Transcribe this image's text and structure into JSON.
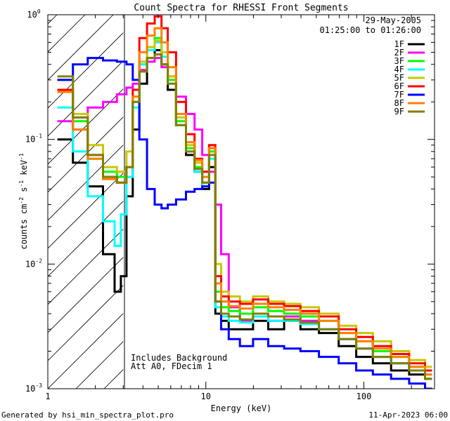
{
  "chart_data": {
    "type": "line",
    "scale": "log-log",
    "title": "Count Spectra for RHESSI Front Segments",
    "xlabel": "Energy (keV)",
    "ylabel_main": "counts cm",
    "ylabel_exp1": "-2",
    "ylabel_s": " s",
    "ylabel_exp2": "-1",
    "ylabel_kev": " keV",
    "ylabel_exp3": "-1",
    "xlim": [
      1,
      280
    ],
    "ylim": [
      0.001,
      1
    ],
    "x_ticks": [
      1,
      10,
      100
    ],
    "x_tick_labels": [
      "1",
      "10",
      "100"
    ],
    "y_ticks": [
      0.001,
      0.01,
      0.1,
      1
    ],
    "y_tick_labels": [
      {
        "base": "10",
        "exp": "-3"
      },
      {
        "base": "10",
        "exp": "-2"
      },
      {
        "base": "10",
        "exp": "-1"
      },
      {
        "base": "10",
        "exp": "0"
      }
    ],
    "hatched_region_max_kev": 3,
    "date": "29-May-2005",
    "time_range": "01:25:00 to 01:26:00",
    "annotation_lines": [
      "Includes Background",
      "Att A0, FDecim 1"
    ],
    "legend_position": "top-right",
    "footer_left": "Generated by hsi_min_spectra_plot.pro",
    "footer_right": "11-Apr-2023 06:00",
    "series": [
      {
        "name": "1F",
        "color": "#000000",
        "values": [
          [
            1.3,
            0.1
          ],
          [
            1.6,
            0.065
          ],
          [
            2.0,
            0.042
          ],
          [
            2.5,
            0.012
          ],
          [
            2.8,
            0.006
          ],
          [
            3.0,
            0.008
          ],
          [
            3.3,
            0.035
          ],
          [
            3.6,
            0.12
          ],
          [
            4.0,
            0.28
          ],
          [
            4.5,
            0.45
          ],
          [
            5.0,
            0.52
          ],
          [
            5.5,
            0.4
          ],
          [
            6.0,
            0.25
          ],
          [
            7.0,
            0.13
          ],
          [
            8.0,
            0.075
          ],
          [
            9.0,
            0.055
          ],
          [
            10,
            0.04
          ],
          [
            11,
            0.06
          ],
          [
            12,
            0.004
          ],
          [
            13,
            0.0035
          ],
          [
            15,
            0.003
          ],
          [
            18,
            0.003
          ],
          [
            22,
            0.0035
          ],
          [
            28,
            0.003
          ],
          [
            35,
            0.0035
          ],
          [
            45,
            0.003
          ],
          [
            60,
            0.0028
          ],
          [
            80,
            0.0022
          ],
          [
            100,
            0.0018
          ],
          [
            130,
            0.0016
          ],
          [
            170,
            0.0014
          ],
          [
            220,
            0.0013
          ],
          [
            270,
            0.0012
          ]
        ]
      },
      {
        "name": "2F",
        "color": "#ff00ff",
        "values": [
          [
            1.3,
            0.14
          ],
          [
            1.6,
            0.15
          ],
          [
            2.0,
            0.18
          ],
          [
            2.5,
            0.2
          ],
          [
            3.0,
            0.23
          ],
          [
            3.3,
            0.26
          ],
          [
            3.6,
            0.28
          ],
          [
            4.0,
            0.36
          ],
          [
            4.5,
            0.42
          ],
          [
            5.0,
            0.45
          ],
          [
            5.5,
            0.38
          ],
          [
            6.0,
            0.32
          ],
          [
            7.0,
            0.22
          ],
          [
            8.0,
            0.16
          ],
          [
            9.0,
            0.12
          ],
          [
            10,
            0.075
          ],
          [
            11,
            0.055
          ],
          [
            12,
            0.03
          ],
          [
            13,
            0.012
          ],
          [
            15,
            0.0045
          ],
          [
            18,
            0.0035
          ],
          [
            22,
            0.0038
          ],
          [
            28,
            0.0035
          ],
          [
            35,
            0.0038
          ],
          [
            45,
            0.0035
          ],
          [
            60,
            0.003
          ],
          [
            80,
            0.0025
          ],
          [
            100,
            0.0021
          ],
          [
            130,
            0.0018
          ],
          [
            170,
            0.0016
          ],
          [
            220,
            0.0014
          ],
          [
            270,
            0.0013
          ]
        ]
      },
      {
        "name": "3F",
        "color": "#00ff00",
        "values": [
          [
            1.3,
            0.25
          ],
          [
            1.6,
            0.14
          ],
          [
            2.0,
            0.07
          ],
          [
            2.5,
            0.055
          ],
          [
            3.0,
            0.05
          ],
          [
            3.3,
            0.06
          ],
          [
            3.6,
            0.2
          ],
          [
            4.0,
            0.4
          ],
          [
            4.5,
            0.55
          ],
          [
            5.0,
            0.65
          ],
          [
            5.5,
            0.5
          ],
          [
            6.0,
            0.3
          ],
          [
            7.0,
            0.14
          ],
          [
            8.0,
            0.085
          ],
          [
            9.0,
            0.06
          ],
          [
            10,
            0.045
          ],
          [
            11,
            0.08
          ],
          [
            12,
            0.006
          ],
          [
            13,
            0.0045
          ],
          [
            15,
            0.0042
          ],
          [
            18,
            0.004
          ],
          [
            22,
            0.0045
          ],
          [
            28,
            0.0042
          ],
          [
            35,
            0.004
          ],
          [
            45,
            0.0038
          ],
          [
            60,
            0.0035
          ],
          [
            80,
            0.0028
          ],
          [
            100,
            0.0024
          ],
          [
            130,
            0.002
          ],
          [
            170,
            0.0018
          ],
          [
            220,
            0.0015
          ],
          [
            270,
            0.0014
          ]
        ]
      },
      {
        "name": "4F",
        "color": "#00ffff",
        "values": [
          [
            1.3,
            0.18
          ],
          [
            1.6,
            0.08
          ],
          [
            2.0,
            0.035
          ],
          [
            2.5,
            0.022
          ],
          [
            2.8,
            0.014
          ],
          [
            3.0,
            0.025
          ],
          [
            3.3,
            0.05
          ],
          [
            3.6,
            0.18
          ],
          [
            4.0,
            0.4
          ],
          [
            4.5,
            0.52
          ],
          [
            5.0,
            0.6
          ],
          [
            5.5,
            0.46
          ],
          [
            6.0,
            0.28
          ],
          [
            7.0,
            0.13
          ],
          [
            8.0,
            0.08
          ],
          [
            9.0,
            0.055
          ],
          [
            10,
            0.042
          ],
          [
            11,
            0.07
          ],
          [
            12,
            0.0045
          ],
          [
            13,
            0.0038
          ],
          [
            15,
            0.0035
          ],
          [
            18,
            0.0034
          ],
          [
            22,
            0.0038
          ],
          [
            28,
            0.0035
          ],
          [
            35,
            0.0035
          ],
          [
            45,
            0.0033
          ],
          [
            60,
            0.003
          ],
          [
            80,
            0.0025
          ],
          [
            100,
            0.0021
          ],
          [
            130,
            0.0018
          ],
          [
            170,
            0.0016
          ],
          [
            220,
            0.0014
          ],
          [
            270,
            0.0013
          ]
        ]
      },
      {
        "name": "5F",
        "color": "#c8c800",
        "values": [
          [
            1.3,
            0.3
          ],
          [
            1.6,
            0.16
          ],
          [
            2.0,
            0.09
          ],
          [
            2.5,
            0.06
          ],
          [
            3.0,
            0.055
          ],
          [
            3.3,
            0.08
          ],
          [
            3.6,
            0.22
          ],
          [
            4.0,
            0.42
          ],
          [
            4.5,
            0.55
          ],
          [
            5.0,
            0.62
          ],
          [
            5.5,
            0.5
          ],
          [
            6.0,
            0.32
          ],
          [
            7.0,
            0.15
          ],
          [
            8.0,
            0.09
          ],
          [
            9.0,
            0.065
          ],
          [
            10,
            0.055
          ],
          [
            11,
            0.085
          ],
          [
            12,
            0.01
          ],
          [
            13,
            0.006
          ],
          [
            15,
            0.0055
          ],
          [
            18,
            0.005
          ],
          [
            22,
            0.0055
          ],
          [
            28,
            0.005
          ],
          [
            35,
            0.0048
          ],
          [
            45,
            0.0045
          ],
          [
            60,
            0.004
          ],
          [
            80,
            0.0032
          ],
          [
            100,
            0.0028
          ],
          [
            130,
            0.0024
          ],
          [
            170,
            0.002
          ],
          [
            220,
            0.0017
          ],
          [
            270,
            0.0015
          ]
        ]
      },
      {
        "name": "6F",
        "color": "#ff0000",
        "values": [
          [
            1.3,
            0.25
          ],
          [
            1.6,
            0.12
          ],
          [
            2.0,
            0.075
          ],
          [
            2.5,
            0.05
          ],
          [
            3.0,
            0.045
          ],
          [
            3.3,
            0.06
          ],
          [
            3.6,
            0.25
          ],
          [
            4.0,
            0.65
          ],
          [
            4.5,
            0.85
          ],
          [
            5.0,
            0.97
          ],
          [
            5.5,
            0.78
          ],
          [
            6.0,
            0.5
          ],
          [
            7.0,
            0.2
          ],
          [
            8.0,
            0.11
          ],
          [
            9.0,
            0.07
          ],
          [
            10,
            0.055
          ],
          [
            11,
            0.09
          ],
          [
            12,
            0.008
          ],
          [
            13,
            0.0055
          ],
          [
            15,
            0.005
          ],
          [
            18,
            0.0048
          ],
          [
            22,
            0.0052
          ],
          [
            28,
            0.0048
          ],
          [
            35,
            0.0046
          ],
          [
            45,
            0.0042
          ],
          [
            60,
            0.0038
          ],
          [
            80,
            0.003
          ],
          [
            100,
            0.0026
          ],
          [
            130,
            0.0022
          ],
          [
            170,
            0.0019
          ],
          [
            220,
            0.0016
          ],
          [
            270,
            0.0014
          ]
        ]
      },
      {
        "name": "7F",
        "color": "#0000ff",
        "values": [
          [
            1.3,
            0.3
          ],
          [
            1.6,
            0.4
          ],
          [
            2.0,
            0.45
          ],
          [
            2.5,
            0.43
          ],
          [
            3.0,
            0.42
          ],
          [
            3.3,
            0.4
          ],
          [
            3.6,
            0.3
          ],
          [
            4.0,
            0.1
          ],
          [
            4.5,
            0.04
          ],
          [
            5.0,
            0.03
          ],
          [
            5.5,
            0.028
          ],
          [
            6.0,
            0.03
          ],
          [
            7.0,
            0.033
          ],
          [
            8.0,
            0.038
          ],
          [
            9.0,
            0.04
          ],
          [
            10,
            0.042
          ],
          [
            11,
            0.045
          ],
          [
            12,
            0.005
          ],
          [
            13,
            0.003
          ],
          [
            15,
            0.0025
          ],
          [
            18,
            0.0022
          ],
          [
            22,
            0.0025
          ],
          [
            28,
            0.0022
          ],
          [
            35,
            0.0021
          ],
          [
            45,
            0.002
          ],
          [
            60,
            0.0018
          ],
          [
            80,
            0.0016
          ],
          [
            100,
            0.0014
          ],
          [
            130,
            0.0013
          ],
          [
            170,
            0.0012
          ],
          [
            220,
            0.0011
          ],
          [
            270,
            0.001
          ]
        ]
      },
      {
        "name": "8F",
        "color": "#ff8000",
        "values": [
          [
            1.3,
            0.24
          ],
          [
            1.6,
            0.12
          ],
          [
            2.0,
            0.07
          ],
          [
            2.5,
            0.048
          ],
          [
            3.0,
            0.045
          ],
          [
            3.3,
            0.06
          ],
          [
            3.6,
            0.22
          ],
          [
            4.0,
            0.5
          ],
          [
            4.5,
            0.68
          ],
          [
            5.0,
            0.78
          ],
          [
            5.5,
            0.6
          ],
          [
            6.0,
            0.38
          ],
          [
            7.0,
            0.16
          ],
          [
            8.0,
            0.095
          ],
          [
            9.0,
            0.068
          ],
          [
            10,
            0.05
          ],
          [
            11,
            0.085
          ],
          [
            12,
            0.007
          ],
          [
            13,
            0.005
          ],
          [
            15,
            0.0046
          ],
          [
            18,
            0.0044
          ],
          [
            22,
            0.0048
          ],
          [
            28,
            0.0045
          ],
          [
            35,
            0.0043
          ],
          [
            45,
            0.004
          ],
          [
            60,
            0.0035
          ],
          [
            80,
            0.0028
          ],
          [
            100,
            0.0024
          ],
          [
            130,
            0.0021
          ],
          [
            170,
            0.0018
          ],
          [
            220,
            0.0015
          ],
          [
            270,
            0.0013
          ]
        ]
      },
      {
        "name": "9F",
        "color": "#808000",
        "values": [
          [
            1.3,
            0.32
          ],
          [
            1.6,
            0.15
          ],
          [
            2.0,
            0.075
          ],
          [
            2.5,
            0.05
          ],
          [
            3.0,
            0.045
          ],
          [
            3.3,
            0.06
          ],
          [
            3.6,
            0.2
          ],
          [
            4.0,
            0.35
          ],
          [
            4.5,
            0.45
          ],
          [
            5.0,
            0.48
          ],
          [
            5.5,
            0.4
          ],
          [
            6.0,
            0.28
          ],
          [
            7.0,
            0.13
          ],
          [
            8.0,
            0.08
          ],
          [
            9.0,
            0.058
          ],
          [
            10,
            0.045
          ],
          [
            11,
            0.075
          ],
          [
            12,
            0.005
          ],
          [
            13,
            0.004
          ],
          [
            15,
            0.0038
          ],
          [
            18,
            0.0036
          ],
          [
            22,
            0.004
          ],
          [
            28,
            0.0038
          ],
          [
            35,
            0.0036
          ],
          [
            45,
            0.0034
          ],
          [
            60,
            0.003
          ],
          [
            80,
            0.0025
          ],
          [
            100,
            0.0021
          ],
          [
            130,
            0.0018
          ],
          [
            170,
            0.0016
          ],
          [
            220,
            0.0014
          ],
          [
            270,
            0.0012
          ]
        ]
      }
    ]
  }
}
